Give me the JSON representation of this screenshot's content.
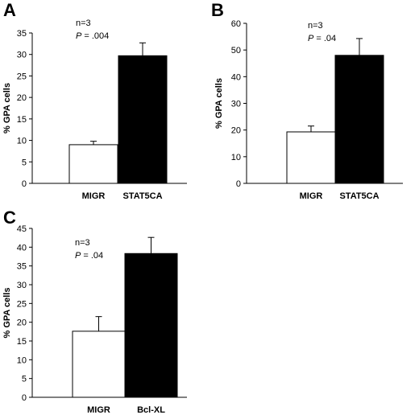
{
  "chart_data": [
    {
      "type": "bar",
      "panel": "A",
      "categories": [
        "MIGR",
        "STAT5CA"
      ],
      "values": [
        9,
        29.7
      ],
      "errors": [
        0.8,
        3.0
      ],
      "bar_colors": [
        "#ffffff",
        "#000000"
      ],
      "ylabel": "% GPA  cells",
      "yticks": [
        0,
        5,
        10,
        15,
        20,
        25,
        30,
        35
      ],
      "ylim": [
        0,
        35
      ],
      "annotation": {
        "n": "n=3",
        "p_letter": "P",
        "p_value": "= .004"
      }
    },
    {
      "type": "bar",
      "panel": "B",
      "categories": [
        "MIGR",
        "STAT5CA"
      ],
      "values": [
        19.3,
        48
      ],
      "errors": [
        2.2,
        6.3
      ],
      "bar_colors": [
        "#ffffff",
        "#000000"
      ],
      "ylabel": "% GPA  cells",
      "yticks": [
        0,
        10,
        20,
        30,
        40,
        50,
        60
      ],
      "ylim": [
        0,
        60
      ],
      "annotation": {
        "n": "n=3",
        "p_letter": "P",
        "p_value": "= .04"
      }
    },
    {
      "type": "bar",
      "panel": "C",
      "categories": [
        "MIGR",
        "Bcl-XL"
      ],
      "values": [
        17.6,
        38.3
      ],
      "errors": [
        3.9,
        4.3
      ],
      "bar_colors": [
        "#ffffff",
        "#000000"
      ],
      "ylabel": "% GPA cells",
      "yticks": [
        0,
        5,
        10,
        15,
        20,
        25,
        30,
        35,
        40,
        45
      ],
      "ylim": [
        0,
        45
      ],
      "annotation": {
        "n": "n=3",
        "p_letter": "P",
        "p_value": "= .04"
      }
    }
  ]
}
